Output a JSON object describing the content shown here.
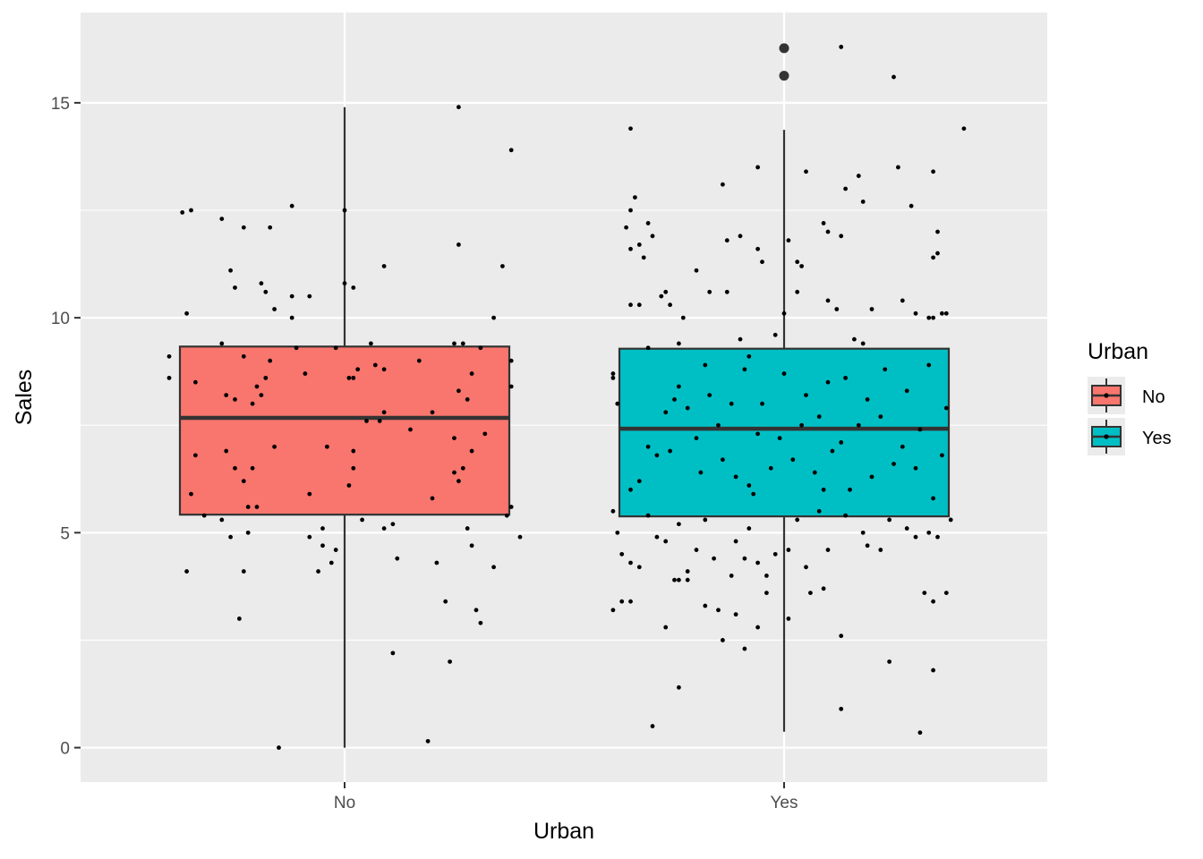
{
  "chart_data": {
    "type": "boxplot",
    "xlabel": "Urban",
    "ylabel": "Sales",
    "categories": [
      "No",
      "Yes"
    ],
    "y_ticks": [
      0,
      5,
      10,
      15
    ],
    "ylim": [
      -0.8,
      17.1
    ],
    "grid": true,
    "legend": {
      "title": "Urban",
      "position": "right",
      "entries": [
        {
          "label": "No",
          "color": "#f8766d"
        },
        {
          "label": "Yes",
          "color": "#00bfc4"
        }
      ]
    },
    "boxes": [
      {
        "category": "No",
        "min": 0,
        "q1": 5.42,
        "median": 7.67,
        "q3": 9.33,
        "max": 14.9,
        "outliers": [],
        "color": "#f8766d"
      },
      {
        "category": "Yes",
        "min": 0.37,
        "q1": 5.38,
        "median": 7.42,
        "q3": 9.28,
        "max": 14.37,
        "outliers": [
          16.27,
          15.63
        ],
        "color": "#00bfc4"
      }
    ],
    "jitter_points": {
      "No": [
        [
          -0.37,
          12.45
        ],
        [
          -0.35,
          12.5
        ],
        [
          -0.28,
          12.3
        ],
        [
          -0.23,
          12.1
        ],
        [
          -0.17,
          12.1
        ],
        [
          -0.12,
          12.6
        ],
        [
          0.0,
          12.5
        ],
        [
          0.26,
          14.9
        ],
        [
          0.38,
          13.9
        ],
        [
          -0.36,
          10.1
        ],
        [
          -0.26,
          11.1
        ],
        [
          -0.25,
          10.7
        ],
        [
          -0.19,
          10.8
        ],
        [
          -0.18,
          10.6
        ],
        [
          -0.16,
          10.2
        ],
        [
          -0.12,
          10.5
        ],
        [
          -0.12,
          10.0
        ],
        [
          -0.08,
          10.5
        ],
        [
          0.0,
          10.8
        ],
        [
          0.02,
          10.7
        ],
        [
          0.09,
          11.2
        ],
        [
          0.26,
          11.7
        ],
        [
          0.36,
          11.2
        ],
        [
          0.34,
          10.0
        ],
        [
          -0.4,
          9.1
        ],
        [
          -0.4,
          8.6
        ],
        [
          -0.34,
          8.5
        ],
        [
          -0.28,
          9.4
        ],
        [
          -0.27,
          8.2
        ],
        [
          -0.25,
          8.1
        ],
        [
          -0.23,
          9.1
        ],
        [
          -0.21,
          8.0
        ],
        [
          -0.2,
          8.4
        ],
        [
          -0.19,
          8.2
        ],
        [
          -0.18,
          8.6
        ],
        [
          -0.17,
          9.0
        ],
        [
          -0.11,
          9.3
        ],
        [
          -0.09,
          8.7
        ],
        [
          -0.02,
          9.3
        ],
        [
          0.01,
          8.6
        ],
        [
          0.02,
          8.6
        ],
        [
          0.03,
          8.8
        ],
        [
          0.06,
          9.4
        ],
        [
          0.07,
          8.9
        ],
        [
          0.09,
          8.8
        ],
        [
          0.17,
          9.0
        ],
        [
          0.25,
          9.4
        ],
        [
          0.27,
          9.4
        ],
        [
          0.26,
          8.3
        ],
        [
          0.28,
          8.1
        ],
        [
          0.29,
          8.7
        ],
        [
          0.31,
          9.3
        ],
        [
          0.38,
          8.4
        ],
        [
          0.38,
          9.0
        ],
        [
          -0.34,
          6.8
        ],
        [
          -0.27,
          6.9
        ],
        [
          -0.25,
          6.5
        ],
        [
          -0.23,
          6.2
        ],
        [
          -0.21,
          6.5
        ],
        [
          -0.16,
          7.0
        ],
        [
          -0.04,
          7.0
        ],
        [
          0.02,
          6.9
        ],
        [
          0.02,
          6.5
        ],
        [
          0.01,
          6.1
        ],
        [
          0.05,
          7.6
        ],
        [
          0.08,
          7.6
        ],
        [
          0.09,
          7.8
        ],
        [
          0.15,
          7.4
        ],
        [
          0.2,
          7.8
        ],
        [
          0.25,
          7.2
        ],
        [
          0.27,
          6.5
        ],
        [
          0.25,
          6.4
        ],
        [
          0.29,
          6.9
        ],
        [
          0.32,
          7.3
        ],
        [
          0.26,
          6.2
        ],
        [
          0.2,
          5.8
        ],
        [
          -0.35,
          5.9
        ],
        [
          -0.32,
          5.4
        ],
        [
          -0.28,
          5.3
        ],
        [
          -0.26,
          4.9
        ],
        [
          -0.22,
          5.0
        ],
        [
          -0.2,
          5.6
        ],
        [
          -0.22,
          5.6
        ],
        [
          -0.08,
          5.9
        ],
        [
          -0.05,
          5.1
        ],
        [
          -0.08,
          4.9
        ],
        [
          -0.06,
          4.1
        ],
        [
          -0.05,
          4.7
        ],
        [
          -0.03,
          4.3
        ],
        [
          -0.02,
          4.6
        ],
        [
          0.04,
          5.3
        ],
        [
          0.09,
          5.1
        ],
        [
          0.11,
          5.2
        ],
        [
          0.12,
          4.4
        ],
        [
          0.21,
          4.3
        ],
        [
          0.28,
          5.1
        ],
        [
          0.29,
          4.7
        ],
        [
          0.34,
          4.2
        ],
        [
          0.37,
          5.4
        ],
        [
          0.38,
          5.6
        ],
        [
          0.4,
          4.9
        ],
        [
          -0.36,
          4.1
        ],
        [
          -0.23,
          4.1
        ],
        [
          -0.24,
          3.0
        ],
        [
          0.11,
          2.2
        ],
        [
          0.23,
          3.4
        ],
        [
          0.24,
          2.0
        ],
        [
          0.3,
          3.2
        ],
        [
          0.31,
          2.9
        ],
        [
          -0.15,
          0.0
        ],
        [
          0.19,
          0.15
        ]
      ],
      "Yes": [
        [
          -0.35,
          12.5
        ],
        [
          -0.36,
          12.1
        ],
        [
          -0.35,
          11.6
        ],
        [
          -0.34,
          12.8
        ],
        [
          -0.33,
          11.7
        ],
        [
          -0.32,
          11.4
        ],
        [
          -0.31,
          12.2
        ],
        [
          -0.3,
          11.9
        ],
        [
          -0.2,
          11.1
        ],
        [
          -0.14,
          13.1
        ],
        [
          -0.13,
          11.8
        ],
        [
          -0.1,
          11.9
        ],
        [
          -0.06,
          11.6
        ],
        [
          -0.05,
          11.3
        ],
        [
          0.01,
          11.8
        ],
        [
          0.03,
          11.3
        ],
        [
          0.04,
          11.2
        ],
        [
          0.05,
          13.4
        ],
        [
          0.09,
          12.2
        ],
        [
          0.1,
          12.0
        ],
        [
          0.13,
          11.9
        ],
        [
          0.14,
          13.0
        ],
        [
          0.17,
          13.3
        ],
        [
          0.18,
          12.7
        ],
        [
          0.26,
          13.5
        ],
        [
          0.29,
          12.6
        ],
        [
          0.34,
          11.4
        ],
        [
          0.34,
          13.4
        ],
        [
          0.35,
          12.0
        ],
        [
          0.35,
          11.5
        ],
        [
          0.41,
          14.4
        ],
        [
          -0.06,
          13.5
        ],
        [
          -0.35,
          14.4
        ],
        [
          0.13,
          16.3
        ],
        [
          0.25,
          15.6
        ],
        [
          -0.39,
          8.7
        ],
        [
          -0.39,
          8.6
        ],
        [
          -0.38,
          8.0
        ],
        [
          -0.35,
          10.3
        ],
        [
          -0.33,
          10.3
        ],
        [
          -0.31,
          9.3
        ],
        [
          -0.28,
          10.5
        ],
        [
          -0.27,
          10.6
        ],
        [
          -0.26,
          10.3
        ],
        [
          -0.23,
          10.0
        ],
        [
          -0.24,
          9.4
        ],
        [
          -0.17,
          10.6
        ],
        [
          -0.13,
          10.6
        ],
        [
          -0.1,
          9.5
        ],
        [
          -0.08,
          9.1
        ],
        [
          -0.02,
          9.6
        ],
        [
          0.0,
          10.1
        ],
        [
          0.03,
          10.6
        ],
        [
          0.1,
          10.4
        ],
        [
          0.12,
          10.2
        ],
        [
          0.16,
          9.5
        ],
        [
          0.18,
          9.4
        ],
        [
          0.2,
          10.2
        ],
        [
          0.27,
          10.4
        ],
        [
          0.3,
          10.1
        ],
        [
          0.33,
          10.0
        ],
        [
          0.34,
          10.0
        ],
        [
          0.36,
          10.1
        ],
        [
          0.37,
          10.1
        ],
        [
          -0.35,
          6.0
        ],
        [
          -0.33,
          6.2
        ],
        [
          -0.31,
          7.0
        ],
        [
          -0.29,
          6.8
        ],
        [
          -0.27,
          7.8
        ],
        [
          -0.25,
          8.1
        ],
        [
          -0.24,
          8.4
        ],
        [
          -0.22,
          7.9
        ],
        [
          -0.2,
          7.2
        ],
        [
          -0.19,
          6.4
        ],
        [
          -0.17,
          8.2
        ],
        [
          -0.15,
          7.5
        ],
        [
          -0.14,
          6.7
        ],
        [
          -0.12,
          8.0
        ],
        [
          -0.11,
          6.3
        ],
        [
          -0.09,
          8.8
        ],
        [
          -0.08,
          6.1
        ],
        [
          -0.06,
          7.3
        ],
        [
          -0.05,
          8.0
        ],
        [
          -0.03,
          6.5
        ],
        [
          -0.01,
          7.2
        ],
        [
          0.0,
          8.7
        ],
        [
          0.02,
          6.7
        ],
        [
          0.04,
          7.5
        ],
        [
          0.05,
          8.2
        ],
        [
          0.07,
          6.4
        ],
        [
          0.08,
          7.7
        ],
        [
          0.1,
          8.5
        ],
        [
          0.11,
          6.9
        ],
        [
          0.13,
          7.1
        ],
        [
          0.14,
          8.6
        ],
        [
          0.15,
          6.0
        ],
        [
          0.17,
          7.5
        ],
        [
          0.19,
          8.1
        ],
        [
          0.2,
          6.3
        ],
        [
          0.22,
          7.7
        ],
        [
          0.23,
          8.8
        ],
        [
          0.25,
          6.6
        ],
        [
          0.27,
          7.0
        ],
        [
          0.28,
          8.3
        ],
        [
          0.3,
          6.5
        ],
        [
          0.31,
          7.4
        ],
        [
          0.33,
          8.9
        ],
        [
          0.34,
          5.8
        ],
        [
          0.36,
          6.8
        ],
        [
          0.37,
          7.9
        ],
        [
          -0.18,
          8.9
        ],
        [
          -0.26,
          6.9
        ],
        [
          0.09,
          6.0
        ],
        [
          -0.07,
          5.9
        ],
        [
          -0.39,
          5.5
        ],
        [
          -0.38,
          5.0
        ],
        [
          -0.37,
          4.5
        ],
        [
          -0.35,
          4.3
        ],
        [
          -0.33,
          4.2
        ],
        [
          -0.31,
          5.4
        ],
        [
          -0.29,
          4.9
        ],
        [
          -0.27,
          4.8
        ],
        [
          -0.24,
          5.2
        ],
        [
          -0.22,
          4.1
        ],
        [
          -0.2,
          4.6
        ],
        [
          -0.18,
          5.3
        ],
        [
          -0.16,
          4.4
        ],
        [
          -0.12,
          4.0
        ],
        [
          -0.11,
          4.8
        ],
        [
          -0.09,
          4.4
        ],
        [
          -0.08,
          5.1
        ],
        [
          -0.06,
          4.3
        ],
        [
          -0.04,
          4.0
        ],
        [
          -0.02,
          4.5
        ],
        [
          0.01,
          4.6
        ],
        [
          0.03,
          5.3
        ],
        [
          0.05,
          4.2
        ],
        [
          0.08,
          5.5
        ],
        [
          0.1,
          4.6
        ],
        [
          0.14,
          5.4
        ],
        [
          0.18,
          5.0
        ],
        [
          0.19,
          4.7
        ],
        [
          0.22,
          4.6
        ],
        [
          0.24,
          5.3
        ],
        [
          0.28,
          5.1
        ],
        [
          0.3,
          4.9
        ],
        [
          0.33,
          5.0
        ],
        [
          0.35,
          4.9
        ],
        [
          0.38,
          5.3
        ],
        [
          -0.39,
          3.2
        ],
        [
          -0.37,
          3.4
        ],
        [
          -0.35,
          3.4
        ],
        [
          -0.27,
          2.8
        ],
        [
          -0.25,
          3.9
        ],
        [
          -0.24,
          3.9
        ],
        [
          -0.22,
          3.9
        ],
        [
          -0.18,
          3.3
        ],
        [
          -0.15,
          3.2
        ],
        [
          -0.14,
          2.5
        ],
        [
          -0.11,
          3.1
        ],
        [
          -0.06,
          2.8
        ],
        [
          -0.04,
          3.6
        ],
        [
          0.06,
          3.6
        ],
        [
          0.09,
          3.7
        ],
        [
          0.13,
          2.6
        ],
        [
          0.32,
          3.6
        ],
        [
          0.34,
          3.4
        ],
        [
          0.37,
          3.6
        ],
        [
          -0.09,
          2.3
        ],
        [
          0.24,
          2.0
        ],
        [
          0.34,
          1.8
        ],
        [
          -0.24,
          1.4
        ],
        [
          -0.3,
          0.5
        ],
        [
          0.13,
          0.9
        ],
        [
          0.31,
          0.35
        ],
        [
          0.01,
          3.0
        ]
      ]
    }
  }
}
